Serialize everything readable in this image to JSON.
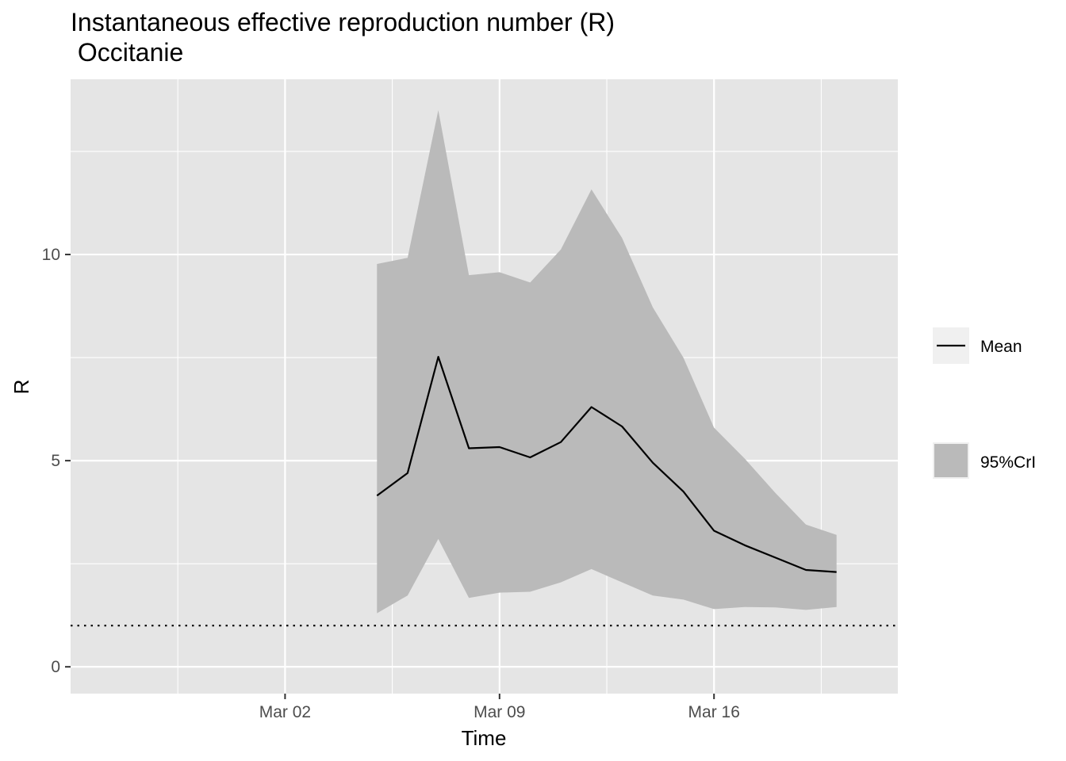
{
  "chart_data": {
    "type": "line",
    "title_line1": "Instantaneous effective reproduction number (R)",
    "title_line2": " Occitanie",
    "xlabel": "Time",
    "ylabel": "R",
    "x_tick_labels": [
      "Mar 02",
      "Mar 09",
      "Mar 16"
    ],
    "x_ticks": [
      "2020-03-02",
      "2020-03-09",
      "2020-03-16"
    ],
    "xlim": [
      "2020-02-24",
      "2020-03-22"
    ],
    "y_ticks": [
      0,
      5,
      10
    ],
    "y_tick_labels": [
      "0",
      "5",
      "10"
    ],
    "ylim": [
      -0.65,
      14.25
    ],
    "threshold": 1,
    "x": [
      "2020-03-05",
      "2020-03-06",
      "2020-03-07",
      "2020-03-08",
      "2020-03-09",
      "2020-03-10",
      "2020-03-11",
      "2020-03-12",
      "2020-03-13",
      "2020-03-14",
      "2020-03-15",
      "2020-03-16",
      "2020-03-17",
      "2020-03-18",
      "2020-03-19",
      "2020-03-20"
    ],
    "series": [
      {
        "name": "Mean",
        "values": [
          4.15,
          4.7,
          7.52,
          5.3,
          5.33,
          5.08,
          5.45,
          6.3,
          5.83,
          4.95,
          4.25,
          3.3,
          2.95,
          2.65,
          2.35,
          2.3
        ]
      },
      {
        "name": "95%CrI",
        "lower": [
          1.3,
          1.73,
          3.1,
          1.67,
          1.8,
          1.82,
          2.05,
          2.37,
          2.05,
          1.73,
          1.63,
          1.4,
          1.45,
          1.44,
          1.38,
          1.45
        ],
        "upper": [
          9.77,
          9.92,
          13.5,
          9.5,
          9.57,
          9.32,
          10.12,
          11.58,
          10.4,
          8.72,
          7.5,
          5.8,
          5.05,
          4.22,
          3.45,
          3.2
        ]
      }
    ],
    "legend": [
      {
        "label": "Mean",
        "kind": "line"
      },
      {
        "label": "95%CrI",
        "kind": "fill"
      }
    ],
    "legend_position": "right",
    "grid": true,
    "colors": {
      "panel": "#e5e5e5",
      "grid": "#ffffff",
      "ribbon": "#bababa",
      "line": "#000000",
      "legend_key": "#f0f0f0"
    }
  }
}
